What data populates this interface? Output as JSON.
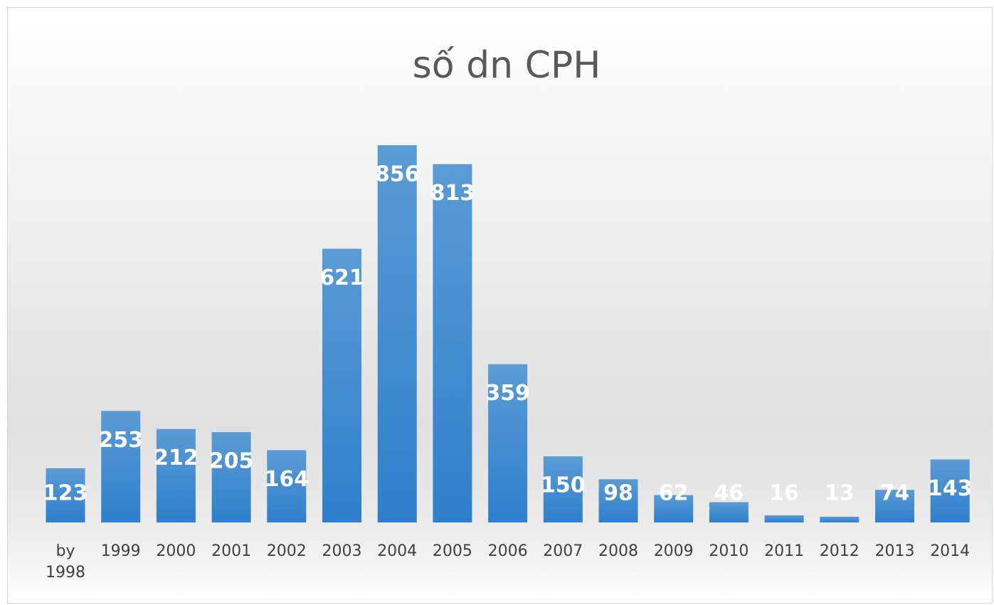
{
  "chart_data": {
    "type": "bar",
    "title": "số dn CPH",
    "categories": [
      "by 1998",
      "1999",
      "2000",
      "2001",
      "2002",
      "2003",
      "2004",
      "2005",
      "2006",
      "2007",
      "2008",
      "2009",
      "2010",
      "2011",
      "2012",
      "2013",
      "2014"
    ],
    "values": [
      123,
      253,
      212,
      205,
      164,
      621,
      856,
      813,
      359,
      150,
      98,
      62,
      46,
      16,
      13,
      74,
      143
    ],
    "color": "#3a87d0"
  }
}
